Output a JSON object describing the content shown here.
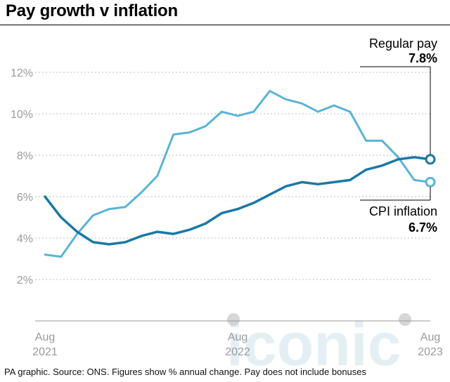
{
  "title": "Pay growth v inflation",
  "footer": "PA graphic. Source: ONS. Figures show % annual change. Pay does not include bonuses",
  "watermark": "iconic",
  "chart_data": {
    "type": "line",
    "title": "Pay growth v inflation",
    "xlabel": "",
    "ylabel": "",
    "x_ticks": [
      {
        "month": 0,
        "label": [
          "Aug",
          "2021"
        ]
      },
      {
        "month": 12,
        "label": [
          "Aug",
          "2022"
        ]
      },
      {
        "month": 24,
        "label": [
          "Aug",
          "2023"
        ]
      }
    ],
    "y_ticks": [
      "2%",
      "4%",
      "6%",
      "8%",
      "10%",
      "12%"
    ],
    "ylim": [
      0,
      12
    ],
    "xlim": [
      "Aug 2021",
      "Aug 2023"
    ],
    "grid": true,
    "series": [
      {
        "name": "Regular pay",
        "end_label": "7.8%",
        "color": "#1a78a6",
        "values": [
          6.0,
          5.0,
          4.3,
          3.8,
          3.7,
          3.8,
          4.1,
          4.3,
          4.2,
          4.4,
          4.7,
          5.2,
          5.4,
          5.7,
          6.1,
          6.5,
          6.7,
          6.6,
          6.7,
          6.8,
          7.3,
          7.5,
          7.8,
          7.9,
          7.8
        ]
      },
      {
        "name": "CPI inflation",
        "end_label": "6.7%",
        "color": "#5ab4d6",
        "values": [
          3.2,
          3.1,
          4.2,
          5.1,
          5.4,
          5.5,
          6.2,
          7.0,
          9.0,
          9.1,
          9.4,
          10.1,
          9.9,
          10.1,
          11.1,
          10.7,
          10.5,
          10.1,
          10.4,
          10.1,
          8.7,
          8.7,
          7.9,
          6.8,
          6.7
        ]
      }
    ]
  }
}
